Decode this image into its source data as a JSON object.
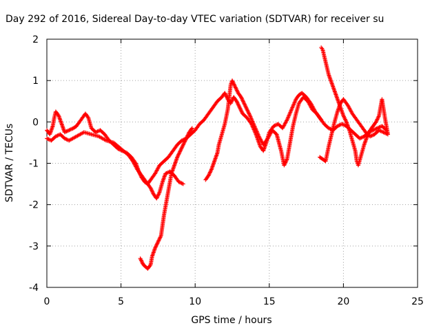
{
  "chart_data": {
    "type": "scatter",
    "title": "Day 292 of 2016, Sidereal Day-to-day VTEC variation (SDTVAR) for receiver su",
    "xlabel": "GPS time / hours",
    "ylabel": "SDTVAR / TECUs",
    "xlim": [
      0,
      25
    ],
    "ylim": [
      -4,
      2
    ],
    "xticks": [
      0,
      5,
      10,
      15,
      20,
      25
    ],
    "yticks": [
      -4,
      -3,
      -2,
      -1,
      0,
      1,
      2
    ],
    "grid": true,
    "marker": "+",
    "color": "#ff0000",
    "series": [
      {
        "values": [
          [
            0.0,
            -0.2
          ],
          [
            0.2,
            -0.3
          ],
          [
            0.4,
            -0.1
          ],
          [
            0.5,
            0.1
          ],
          [
            0.6,
            0.25
          ],
          [
            0.8,
            0.15
          ],
          [
            1.0,
            -0.05
          ],
          [
            1.2,
            -0.25
          ],
          [
            1.5,
            -0.2
          ],
          [
            1.8,
            -0.15
          ],
          [
            2.0,
            -0.1
          ],
          [
            2.3,
            0.05
          ],
          [
            2.6,
            0.2
          ],
          [
            2.8,
            0.1
          ],
          [
            3.0,
            -0.15
          ],
          [
            3.3,
            -0.25
          ],
          [
            3.6,
            -0.2
          ],
          [
            3.9,
            -0.3
          ],
          [
            4.2,
            -0.45
          ],
          [
            4.5,
            -0.55
          ],
          [
            4.8,
            -0.65
          ],
          [
            5.1,
            -0.7
          ],
          [
            5.4,
            -0.75
          ],
          [
            5.7,
            -0.85
          ],
          [
            6.0,
            -1.0
          ],
          [
            6.2,
            -1.2
          ],
          [
            6.4,
            -1.35
          ],
          [
            6.6,
            -1.45
          ],
          [
            6.8,
            -1.5
          ],
          [
            7.0,
            -1.4
          ],
          [
            7.3,
            -1.25
          ],
          [
            7.6,
            -1.05
          ],
          [
            7.9,
            -0.95
          ],
          [
            8.2,
            -0.85
          ],
          [
            8.5,
            -0.7
          ],
          [
            8.8,
            -0.55
          ],
          [
            9.1,
            -0.45
          ],
          [
            9.4,
            -0.4
          ],
          [
            9.7,
            -0.3
          ],
          [
            10.0,
            -0.2
          ],
          [
            10.3,
            -0.05
          ],
          [
            10.6,
            0.05
          ],
          [
            10.9,
            0.2
          ],
          [
            11.2,
            0.35
          ],
          [
            11.5,
            0.5
          ],
          [
            11.8,
            0.6
          ],
          [
            12.0,
            0.7
          ],
          [
            12.2,
            0.55
          ],
          [
            12.4,
            0.45
          ],
          [
            12.6,
            0.6
          ],
          [
            12.8,
            0.5
          ],
          [
            13.0,
            0.35
          ],
          [
            13.2,
            0.2
          ],
          [
            13.5,
            0.1
          ],
          [
            13.8,
            -0.05
          ],
          [
            14.1,
            -0.3
          ],
          [
            14.4,
            -0.6
          ],
          [
            14.6,
            -0.7
          ],
          [
            14.8,
            -0.5
          ],
          [
            15.0,
            -0.25
          ],
          [
            15.3,
            -0.1
          ],
          [
            15.6,
            -0.05
          ],
          [
            15.9,
            -0.15
          ],
          [
            16.2,
            0.05
          ],
          [
            16.5,
            0.3
          ],
          [
            16.8,
            0.55
          ],
          [
            17.0,
            0.65
          ],
          [
            17.2,
            0.7
          ],
          [
            17.5,
            0.6
          ],
          [
            17.8,
            0.45
          ],
          [
            18.1,
            0.25
          ],
          [
            18.4,
            0.1
          ],
          [
            18.7,
            -0.05
          ],
          [
            19.0,
            -0.15
          ],
          [
            19.3,
            -0.2
          ],
          [
            19.6,
            -0.1
          ],
          [
            19.9,
            -0.05
          ],
          [
            20.2,
            -0.1
          ],
          [
            20.5,
            -0.2
          ],
          [
            20.8,
            -0.3
          ],
          [
            21.1,
            -0.4
          ],
          [
            21.4,
            -0.35
          ],
          [
            21.7,
            -0.25
          ],
          [
            22.0,
            -0.2
          ],
          [
            22.3,
            -0.15
          ],
          [
            22.6,
            -0.1
          ],
          [
            22.9,
            -0.2
          ]
        ]
      },
      {
        "values": [
          [
            0.0,
            -0.4
          ],
          [
            0.3,
            -0.45
          ],
          [
            0.6,
            -0.35
          ],
          [
            0.9,
            -0.3
          ],
          [
            1.2,
            -0.4
          ],
          [
            1.5,
            -0.45
          ],
          [
            2.0,
            -0.35
          ],
          [
            2.5,
            -0.25
          ],
          [
            3.0,
            -0.3
          ],
          [
            3.5,
            -0.35
          ],
          [
            4.0,
            -0.45
          ],
          [
            4.5,
            -0.5
          ],
          [
            5.0,
            -0.65
          ],
          [
            5.5,
            -0.8
          ],
          [
            5.8,
            -0.95
          ],
          [
            6.1,
            -1.15
          ],
          [
            6.4,
            -1.3
          ],
          [
            6.7,
            -1.45
          ],
          [
            7.0,
            -1.6
          ],
          [
            7.2,
            -1.75
          ],
          [
            7.4,
            -1.85
          ],
          [
            7.6,
            -1.7
          ],
          [
            7.8,
            -1.45
          ],
          [
            8.0,
            -1.25
          ],
          [
            8.3,
            -1.2
          ],
          [
            8.6,
            -1.3
          ],
          [
            8.9,
            -1.45
          ],
          [
            9.2,
            -1.5
          ]
        ]
      },
      {
        "values": [
          [
            6.3,
            -3.3
          ],
          [
            6.5,
            -3.45
          ],
          [
            6.8,
            -3.55
          ],
          [
            7.0,
            -3.45
          ],
          [
            7.1,
            -3.25
          ],
          [
            7.3,
            -3.05
          ],
          [
            7.5,
            -2.9
          ],
          [
            7.7,
            -2.75
          ],
          [
            7.8,
            -2.5
          ],
          [
            7.9,
            -2.25
          ],
          [
            8.0,
            -2.05
          ],
          [
            8.1,
            -1.85
          ],
          [
            8.2,
            -1.65
          ],
          [
            8.3,
            -1.45
          ],
          [
            8.4,
            -1.25
          ],
          [
            8.6,
            -1.05
          ],
          [
            8.8,
            -0.85
          ],
          [
            9.0,
            -0.7
          ],
          [
            9.2,
            -0.55
          ],
          [
            9.4,
            -0.4
          ],
          [
            9.6,
            -0.25
          ],
          [
            9.8,
            -0.15
          ]
        ]
      },
      {
        "values": [
          [
            10.7,
            -1.4
          ],
          [
            10.9,
            -1.3
          ],
          [
            11.1,
            -1.15
          ],
          [
            11.3,
            -0.95
          ],
          [
            11.5,
            -0.75
          ],
          [
            11.6,
            -0.55
          ],
          [
            11.8,
            -0.3
          ],
          [
            12.0,
            -0.05
          ],
          [
            12.2,
            0.3
          ],
          [
            12.3,
            0.6
          ],
          [
            12.4,
            0.9
          ],
          [
            12.5,
            1.0
          ],
          [
            12.7,
            0.85
          ],
          [
            12.9,
            0.7
          ],
          [
            13.1,
            0.6
          ],
          [
            13.3,
            0.45
          ],
          [
            13.5,
            0.3
          ],
          [
            13.7,
            0.15
          ],
          [
            14.0,
            -0.1
          ],
          [
            14.3,
            -0.35
          ],
          [
            14.6,
            -0.55
          ],
          [
            14.9,
            -0.4
          ],
          [
            15.2,
            -0.2
          ],
          [
            15.5,
            -0.3
          ],
          [
            15.8,
            -0.7
          ],
          [
            16.0,
            -1.05
          ],
          [
            16.2,
            -0.9
          ],
          [
            16.4,
            -0.5
          ],
          [
            16.6,
            -0.1
          ],
          [
            16.8,
            0.2
          ],
          [
            17.0,
            0.45
          ],
          [
            17.3,
            0.6
          ],
          [
            17.6,
            0.5
          ],
          [
            17.9,
            0.3
          ],
          [
            18.2,
            0.2
          ],
          [
            18.5,
            0.05
          ]
        ]
      },
      {
        "values": [
          [
            18.5,
            1.8
          ],
          [
            18.6,
            1.75
          ],
          [
            18.7,
            1.6
          ],
          [
            18.8,
            1.45
          ],
          [
            18.9,
            1.3
          ],
          [
            19.0,
            1.15
          ],
          [
            19.2,
            0.95
          ],
          [
            19.4,
            0.75
          ],
          [
            19.6,
            0.55
          ],
          [
            19.8,
            0.35
          ],
          [
            20.0,
            0.15
          ],
          [
            20.2,
            0.0
          ],
          [
            20.4,
            -0.2
          ],
          [
            20.6,
            -0.45
          ],
          [
            20.8,
            -0.7
          ],
          [
            20.9,
            -0.95
          ],
          [
            21.0,
            -1.05
          ],
          [
            21.2,
            -0.8
          ],
          [
            21.4,
            -0.55
          ],
          [
            21.6,
            -0.35
          ],
          [
            21.8,
            -0.2
          ],
          [
            22.0,
            -0.1
          ],
          [
            22.2,
            0.0
          ],
          [
            22.4,
            0.15
          ],
          [
            22.5,
            0.35
          ],
          [
            22.6,
            0.55
          ],
          [
            22.8,
            0.1
          ],
          [
            23.0,
            -0.3
          ]
        ]
      },
      {
        "values": [
          [
            18.4,
            -0.85
          ],
          [
            18.6,
            -0.9
          ],
          [
            18.8,
            -0.95
          ],
          [
            19.0,
            -0.6
          ],
          [
            19.2,
            -0.3
          ],
          [
            19.4,
            0.0
          ],
          [
            19.6,
            0.25
          ],
          [
            19.8,
            0.45
          ],
          [
            20.0,
            0.55
          ],
          [
            20.3,
            0.4
          ],
          [
            20.6,
            0.2
          ],
          [
            20.9,
            0.05
          ],
          [
            21.2,
            -0.1
          ],
          [
            21.5,
            -0.25
          ],
          [
            21.8,
            -0.35
          ],
          [
            22.1,
            -0.3
          ],
          [
            22.4,
            -0.2
          ],
          [
            22.7,
            -0.25
          ],
          [
            23.0,
            -0.3
          ]
        ]
      }
    ]
  }
}
